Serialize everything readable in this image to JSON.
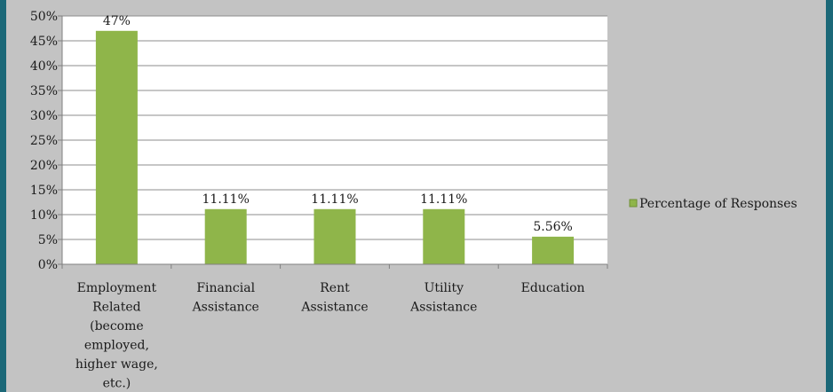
{
  "chart_data": {
    "type": "bar",
    "categories": [
      [
        "Employment",
        "Related",
        "(become",
        "employed,",
        "higher wage,",
        "etc.)"
      ],
      [
        "Financial",
        "Assistance"
      ],
      [
        "Rent",
        "Assistance"
      ],
      [
        "Utility",
        "Assistance"
      ],
      [
        "Education"
      ]
    ],
    "series": [
      {
        "name": "Percentage of Responses",
        "values": [
          47,
          11.11,
          11.11,
          11.11,
          5.56
        ],
        "data_labels": [
          "47%",
          "11.11%",
          "11.11%",
          "11.11%",
          "5.56%"
        ],
        "color": "#8fb54a"
      }
    ],
    "y_ticks": [
      "0%",
      "5%",
      "10%",
      "15%",
      "20%",
      "25%",
      "30%",
      "35%",
      "40%",
      "45%",
      "50%"
    ],
    "ylim": [
      0,
      50
    ],
    "grid": true,
    "legend_position": "right",
    "plot_background": "#ffffff",
    "panel_background": "#c3c3c3",
    "frame_color": "#1b6878"
  }
}
